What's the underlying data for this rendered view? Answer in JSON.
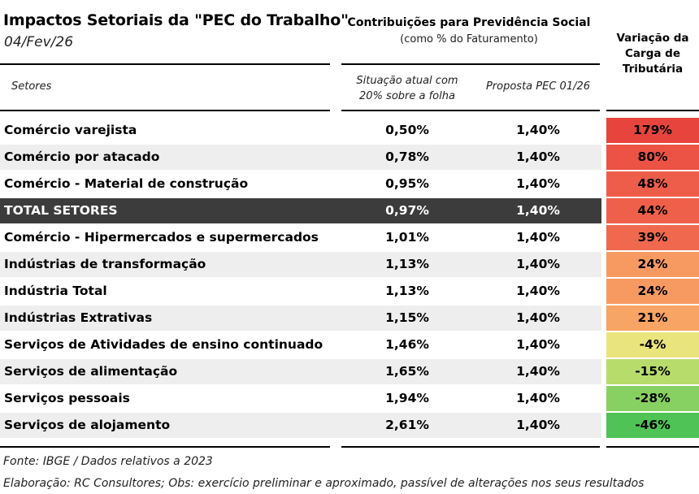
{
  "title": "Impactos Setoriais da \"PEC do Trabalho\"",
  "date": "04/Fev/26",
  "header": {
    "contrib_title": "Contribuições para Previdência Social",
    "contrib_subtitle": "(como % do Faturamento)",
    "variation_line1": "Variação da",
    "variation_line2": "Carga de",
    "variation_line3": "Tributária",
    "col_sectors": "Setores",
    "col_current_line1": "Situação atual com",
    "col_current_line2": "20% sobre a folha",
    "col_proposal": "Proposta PEC 01/26"
  },
  "chart_data": {
    "type": "table",
    "title": "Impactos Setoriais da \"PEC do Trabalho\"",
    "columns": [
      "Setores",
      "Situação atual com 20% sobre a folha",
      "Proposta PEC 01/26",
      "Variação da Carga de Tributária"
    ],
    "rows": [
      {
        "sector": "Comércio varejista",
        "current": "0,50%",
        "proposal": "1,40%",
        "variation": "179%",
        "variation_value": 179,
        "color": "#e8443e",
        "style": "plain"
      },
      {
        "sector": "Comércio por atacado",
        "current": "0,78%",
        "proposal": "1,40%",
        "variation": "80%",
        "variation_value": 80,
        "color": "#ec5345",
        "style": "shaded"
      },
      {
        "sector": "Comércio - Material de construção",
        "current": "0,95%",
        "proposal": "1,40%",
        "variation": "48%",
        "variation_value": 48,
        "color": "#ee5d49",
        "style": "plain"
      },
      {
        "sector": "TOTAL SETORES",
        "current": "0,97%",
        "proposal": "1,40%",
        "variation": "44%",
        "variation_value": 44,
        "color": "#ef604a",
        "style": "total"
      },
      {
        "sector": "Comércio - Hipermercados e supermercados",
        "current": "1,01%",
        "proposal": "1,40%",
        "variation": "39%",
        "variation_value": 39,
        "color": "#f0684e",
        "style": "plain"
      },
      {
        "sector": "Indústrias de transformação",
        "current": "1,13%",
        "proposal": "1,40%",
        "variation": "24%",
        "variation_value": 24,
        "color": "#f69a62",
        "style": "shaded"
      },
      {
        "sector": "Indústria Total",
        "current": "1,13%",
        "proposal": "1,40%",
        "variation": "24%",
        "variation_value": 24,
        "color": "#f69a62",
        "style": "plain"
      },
      {
        "sector": "Indústrias Extrativas",
        "current": "1,15%",
        "proposal": "1,40%",
        "variation": "21%",
        "variation_value": 21,
        "color": "#f7a464",
        "style": "shaded"
      },
      {
        "sector": "Serviços de Atividades de ensino continuado",
        "current": "1,46%",
        "proposal": "1,40%",
        "variation": "-4%",
        "variation_value": -4,
        "color": "#e9e57c",
        "style": "plain"
      },
      {
        "sector": "Serviços de alimentação",
        "current": "1,65%",
        "proposal": "1,40%",
        "variation": "-15%",
        "variation_value": -15,
        "color": "#b8dc6c",
        "style": "shaded"
      },
      {
        "sector": "Serviços pessoais",
        "current": "1,94%",
        "proposal": "1,40%",
        "variation": "-28%",
        "variation_value": -28,
        "color": "#87d162",
        "style": "plain"
      },
      {
        "sector": "Serviços de alojamento",
        "current": "2,61%",
        "proposal": "1,40%",
        "variation": "-46%",
        "variation_value": -46,
        "color": "#4fc355",
        "style": "shaded"
      }
    ]
  },
  "footer": {
    "source": "Fonte: IBGE / Dados relativos a 2023",
    "credits": "Elaboração: RC Consultores; Obs: exercício preliminar e aproximado, passível de alterações nos seus resultados"
  }
}
